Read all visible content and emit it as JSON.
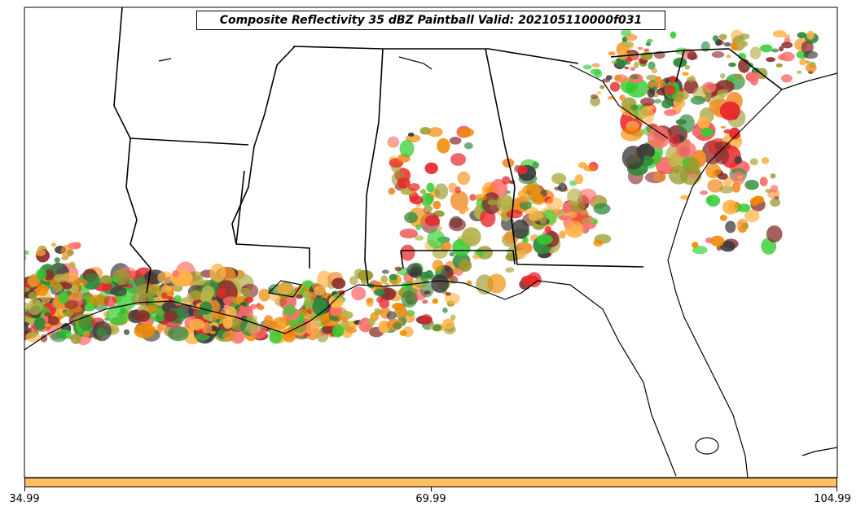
{
  "title": "Composite Reflectivity 35 dBZ Paintball Valid: 202105110000f031",
  "colorbar": {
    "color": "#FFC15E",
    "ticks": [
      "34.99",
      "69.99",
      "104.99"
    ]
  },
  "member_colors": [
    "#E8282A",
    "#F28C28",
    "#FFB347",
    "#8B2E2E",
    "#32CD32",
    "#2E8B3C",
    "#9A9A2E",
    "#3A3A3A",
    "#FF6F6F",
    "#B5B04A",
    "#EF8A00"
  ]
}
